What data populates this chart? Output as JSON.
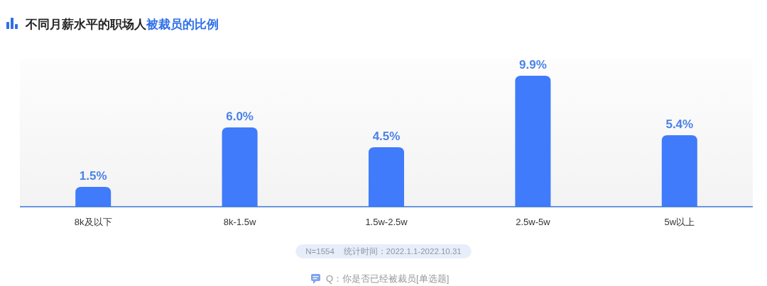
{
  "chart_data": {
    "type": "bar",
    "title": "不同月薪水平的职场人被裁员的比例",
    "categories": [
      "8k及以下",
      "8k-1.5w",
      "1.5w-2.5w",
      "2.5w-5w",
      "5w以上"
    ],
    "values": [
      1.5,
      6.0,
      4.5,
      9.9,
      5.4
    ],
    "value_labels": [
      "1.5%",
      "6.0%",
      "4.5%",
      "9.9%",
      "5.4%"
    ],
    "color": "#3f7bfa",
    "annotations": [
      "N=1554    统计时间：2022.1.1-2022.10.31",
      "Q：你是否已经被裁员[单选题]"
    ]
  }
}
